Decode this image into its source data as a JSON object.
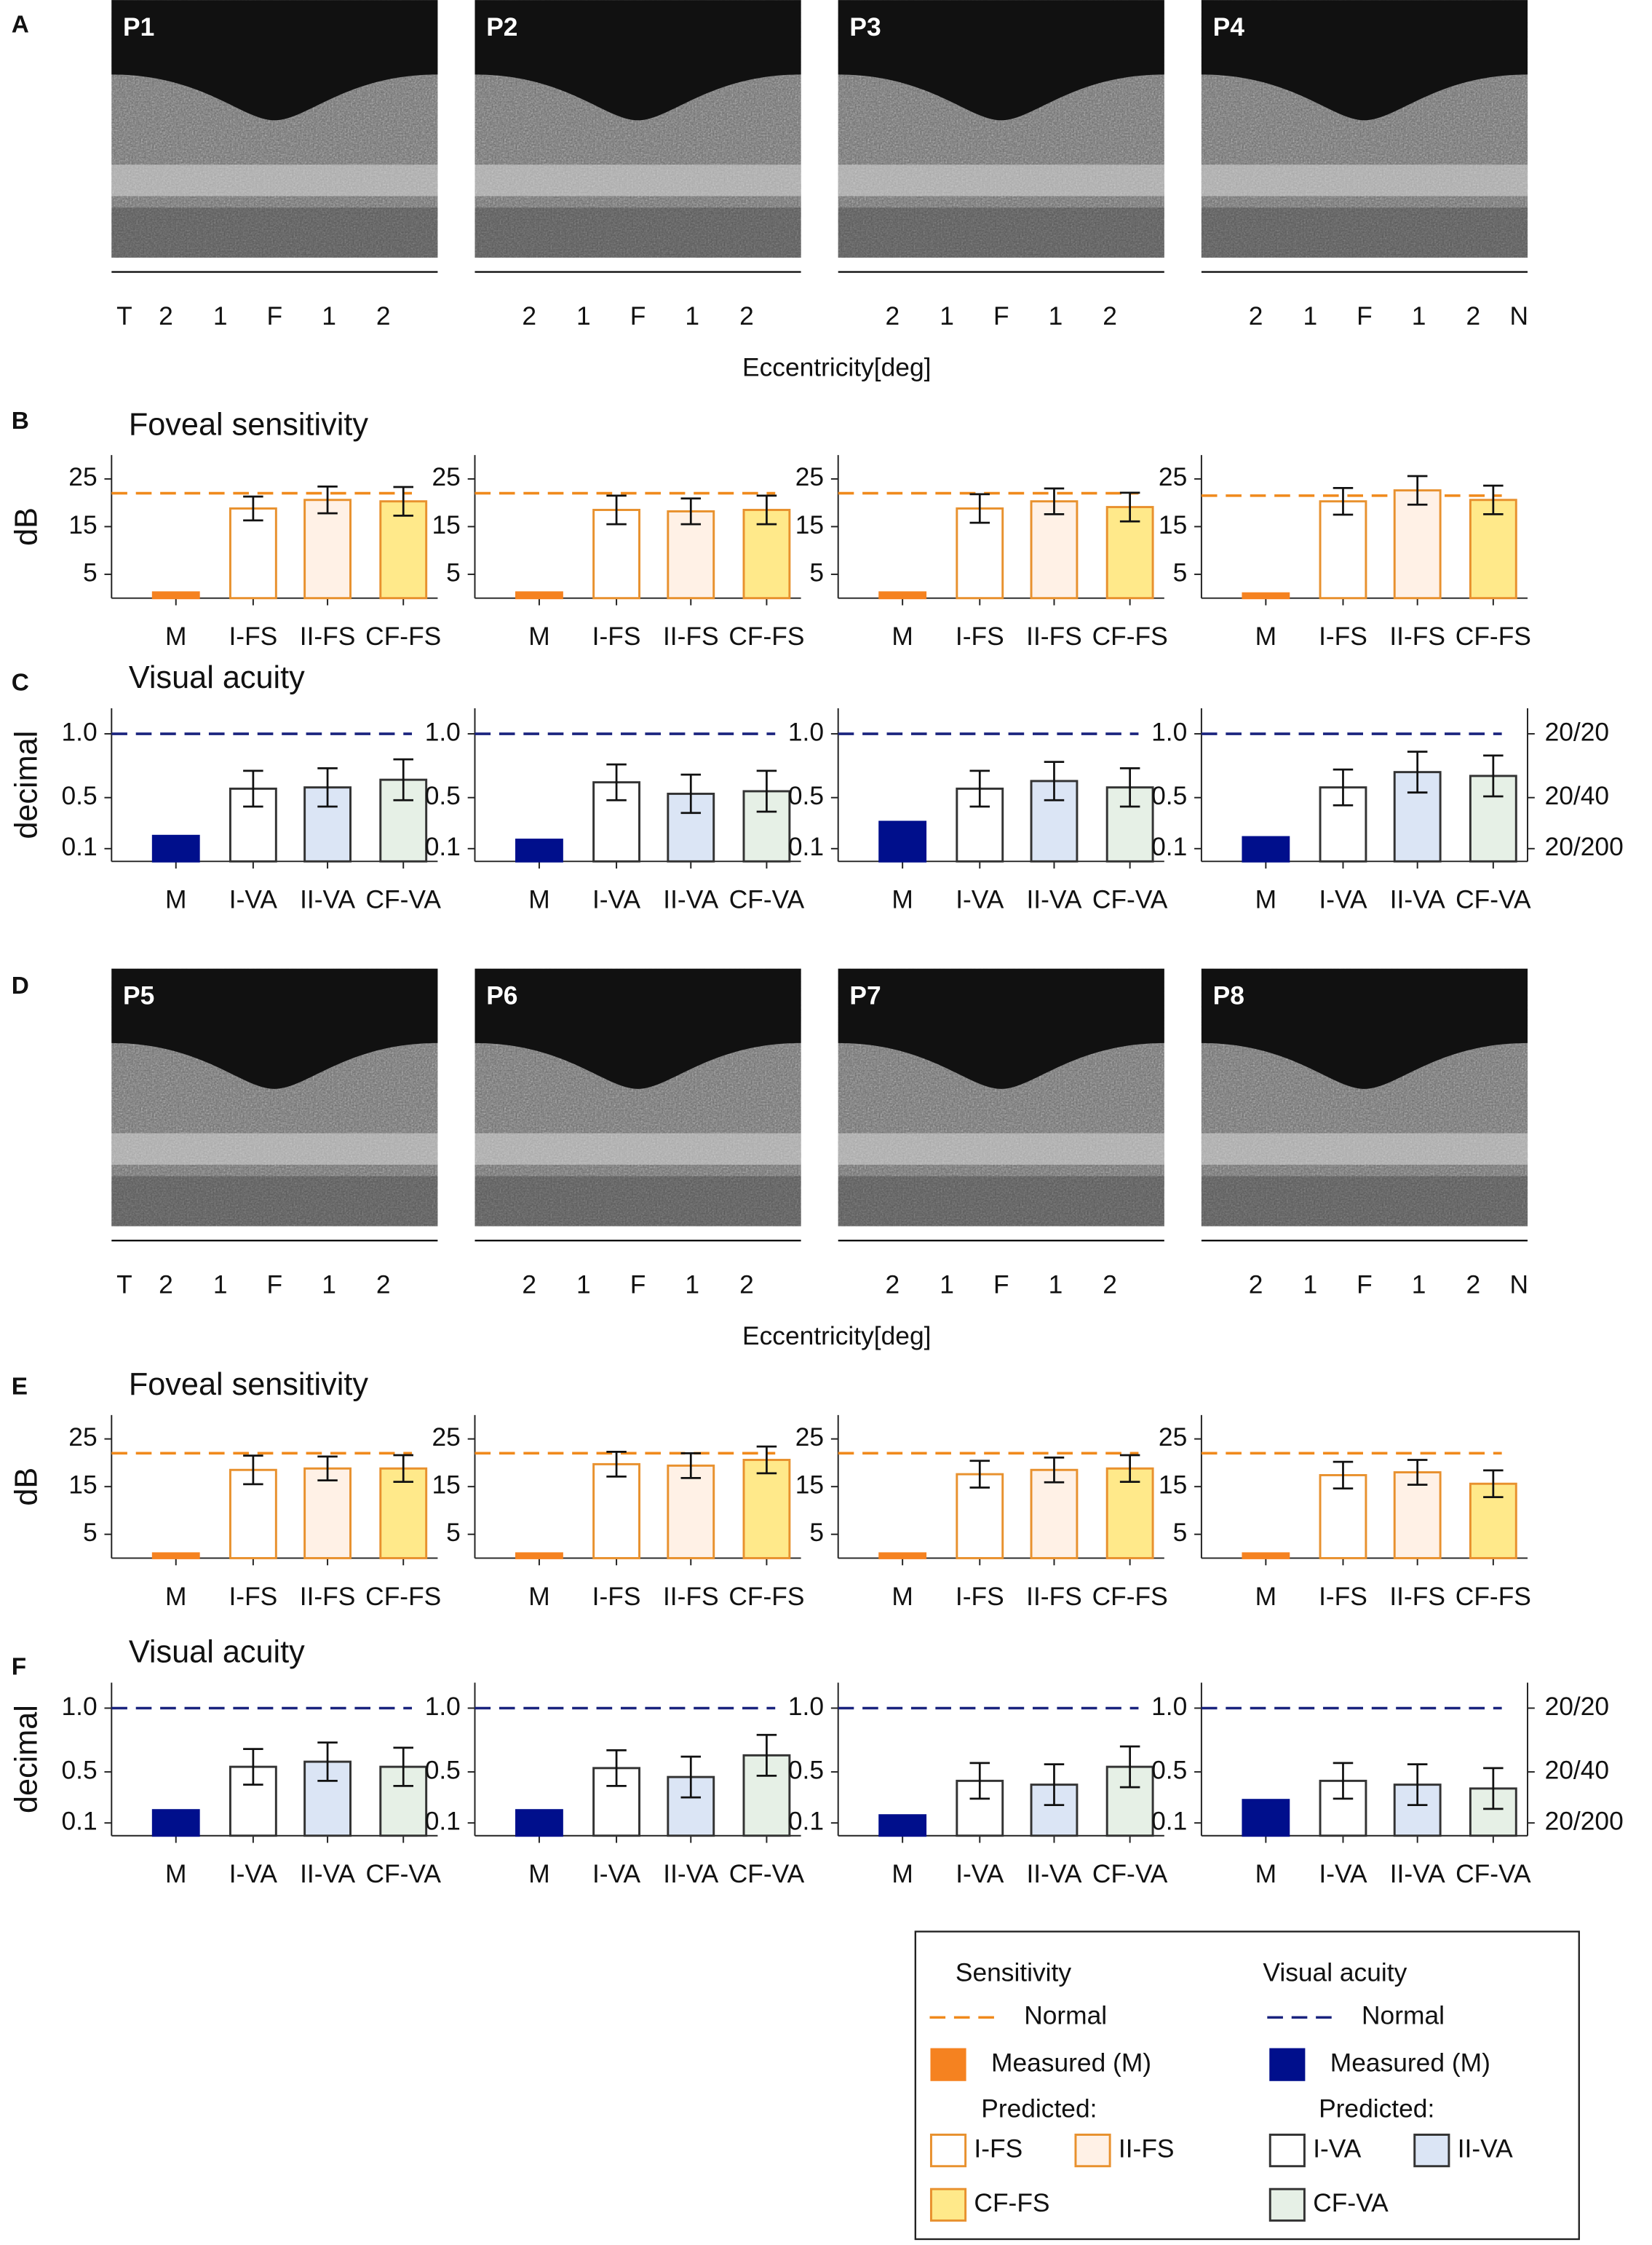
{
  "panel_letters": [
    "A",
    "B",
    "C",
    "D",
    "E",
    "F"
  ],
  "oct_rows": [
    {
      "images": [
        {
          "label": "P1",
          "ticks": [
            "T",
            "2",
            "1",
            "F",
            "1",
            "2"
          ]
        },
        {
          "label": "P2",
          "ticks": [
            "2",
            "1",
            "F",
            "1",
            "2"
          ]
        },
        {
          "label": "P3",
          "ticks": [
            "2",
            "1",
            "F",
            "1",
            "2"
          ]
        },
        {
          "label": "P4",
          "ticks": [
            "2",
            "1",
            "F",
            "1",
            "2",
            "N"
          ]
        }
      ],
      "axis_label": "Eccentricity[deg]"
    },
    {
      "images": [
        {
          "label": "P5",
          "ticks": [
            "T",
            "2",
            "1",
            "F",
            "1",
            "2"
          ]
        },
        {
          "label": "P6",
          "ticks": [
            "2",
            "1",
            "F",
            "1",
            "2"
          ]
        },
        {
          "label": "P7",
          "ticks": [
            "2",
            "1",
            "F",
            "1",
            "2"
          ]
        },
        {
          "label": "P8",
          "ticks": [
            "2",
            "1",
            "F",
            "1",
            "2",
            "N"
          ]
        }
      ],
      "axis_label": "Eccentricity[deg]"
    }
  ],
  "chart_data": [
    {
      "type": "bar",
      "title": "Foveal sensitivity",
      "ylabel": "dB",
      "categories": [
        "M",
        "I-FS",
        "II-FS",
        "CF-FS"
      ],
      "values": [
        1.2,
        18.8,
        20.6,
        20.3
      ],
      "errors": [
        null,
        2.5,
        2.8,
        3
      ],
      "colors": [
        "#f58220",
        "#ffffff",
        "#fff1e6",
        "#ffe98a"
      ],
      "edgecolors": [
        "#f58220",
        "#e8912e",
        "#e8912e",
        "#e8912e"
      ],
      "ylim": [
        0,
        30
      ],
      "yticks": [
        5,
        15,
        25
      ],
      "normal": 22,
      "normal_color": "#f08a1c"
    },
    {
      "type": "bar",
      "categories": [
        "M",
        "I-FS",
        "II-FS",
        "CF-FS"
      ],
      "values": [
        1.2,
        18.5,
        18.2,
        18.5
      ],
      "errors": [
        null,
        3,
        2.7,
        3
      ],
      "colors": [
        "#f58220",
        "#ffffff",
        "#fff1e6",
        "#ffe98a"
      ],
      "edgecolors": [
        "#f58220",
        "#e8912e",
        "#e8912e",
        "#e8912e"
      ],
      "ylim": [
        0,
        30
      ],
      "yticks": [
        5,
        15,
        25
      ],
      "normal": 22,
      "normal_color": "#f08a1c"
    },
    {
      "type": "bar",
      "categories": [
        "M",
        "I-FS",
        "II-FS",
        "CF-FS"
      ],
      "values": [
        1.2,
        18.8,
        20.3,
        19.1
      ],
      "errors": [
        null,
        3,
        2.7,
        3
      ],
      "colors": [
        "#f58220",
        "#ffffff",
        "#fff1e6",
        "#ffe98a"
      ],
      "edgecolors": [
        "#f58220",
        "#e8912e",
        "#e8912e",
        "#e8912e"
      ],
      "ylim": [
        0,
        30
      ],
      "yticks": [
        5,
        15,
        25
      ],
      "normal": 22,
      "normal_color": "#f08a1c"
    },
    {
      "type": "bar",
      "categories": [
        "M",
        "I-FS",
        "II-FS",
        "CF-FS"
      ],
      "values": [
        1,
        20.3,
        22.6,
        20.6
      ],
      "errors": [
        null,
        2.8,
        3,
        3
      ],
      "colors": [
        "#f58220",
        "#ffffff",
        "#fff1e6",
        "#ffe98a"
      ],
      "edgecolors": [
        "#f58220",
        "#e8912e",
        "#e8912e",
        "#e8912e"
      ],
      "ylim": [
        0,
        30
      ],
      "yticks": [
        5,
        15,
        25
      ],
      "normal": 21.5,
      "normal_color": "#f08a1c"
    },
    {
      "type": "bar",
      "title": "Visual acuity",
      "ylabel": "decimal",
      "categories": [
        "M",
        "I-VA",
        "II-VA",
        "CF-VA"
      ],
      "values": [
        0.2,
        0.57,
        0.58,
        0.64
      ],
      "errors": [
        null,
        0.14,
        0.15,
        0.16
      ],
      "colors": [
        "#000f8c",
        "#ffffff",
        "#dbe5f5",
        "#e6f0e6"
      ],
      "edgecolors": [
        "#000f8c",
        "#333333",
        "#333333",
        "#333333"
      ],
      "ylim": [
        0,
        1.2
      ],
      "yticks": [
        0.1,
        0.5,
        {
          "value": 1.0,
          "label": "1.0"
        }
      ],
      "normal": 1.0,
      "normal_color": "#1a237e"
    },
    {
      "type": "bar",
      "categories": [
        "M",
        "I-VA",
        "II-VA",
        "CF-VA"
      ],
      "values": [
        0.17,
        0.62,
        0.53,
        0.55
      ],
      "errors": [
        null,
        0.14,
        0.15,
        0.16
      ],
      "colors": [
        "#000f8c",
        "#ffffff",
        "#dbe5f5",
        "#e6f0e6"
      ],
      "edgecolors": [
        "#000f8c",
        "#333333",
        "#333333",
        "#333333"
      ],
      "ylim": [
        0,
        1.2
      ],
      "yticks": [
        0.1,
        0.5,
        {
          "value": 1.0,
          "label": "1.0"
        }
      ],
      "normal": 1.0,
      "normal_color": "#1a237e"
    },
    {
      "type": "bar",
      "categories": [
        "M",
        "I-VA",
        "II-VA",
        "CF-VA"
      ],
      "values": [
        0.31,
        0.57,
        0.63,
        0.58
      ],
      "errors": [
        null,
        0.14,
        0.15,
        0.15
      ],
      "colors": [
        "#000f8c",
        "#ffffff",
        "#dbe5f5",
        "#e6f0e6"
      ],
      "edgecolors": [
        "#000f8c",
        "#333333",
        "#333333",
        "#333333"
      ],
      "ylim": [
        0,
        1.2
      ],
      "yticks": [
        0.1,
        0.5,
        {
          "value": 1.0,
          "label": "1.0"
        }
      ],
      "normal": 1.0,
      "normal_color": "#1a237e"
    },
    {
      "type": "bar",
      "categories": [
        "M",
        "I-VA",
        "II-VA",
        "CF-VA"
      ],
      "values": [
        0.19,
        0.58,
        0.7,
        0.67
      ],
      "errors": [
        null,
        0.14,
        0.16,
        0.16
      ],
      "colors": [
        "#000f8c",
        "#ffffff",
        "#dbe5f5",
        "#e6f0e6"
      ],
      "edgecolors": [
        "#000f8c",
        "#333333",
        "#333333",
        "#333333"
      ],
      "ylim": [
        0,
        1.2
      ],
      "yticks": [
        0.1,
        0.5,
        {
          "value": 1.0,
          "label": "1.0"
        }
      ],
      "y2lim": [
        0,
        1.2
      ],
      "y2ticks": [
        {
          "value": 1.0,
          "label": "20/20"
        },
        {
          "value": 0.5,
          "label": "20/40"
        },
        {
          "value": 0.1,
          "label": "20/200"
        }
      ],
      "normal": 1.0,
      "normal_color": "#1a237e"
    },
    {
      "type": "bar",
      "title": "Foveal sensitivity",
      "ylabel": "dB",
      "categories": [
        "M",
        "I-FS",
        "II-FS",
        "CF-FS"
      ],
      "values": [
        1,
        18.5,
        18.8,
        18.8
      ],
      "errors": [
        null,
        3,
        2.5,
        2.8
      ],
      "colors": [
        "#f58220",
        "#ffffff",
        "#fff1e6",
        "#ffe98a"
      ],
      "edgecolors": [
        "#f58220",
        "#e8912e",
        "#e8912e",
        "#e8912e"
      ],
      "ylim": [
        0,
        30
      ],
      "yticks": [
        5,
        15,
        25
      ],
      "normal": 22,
      "normal_color": "#f08a1c"
    },
    {
      "type": "bar",
      "categories": [
        "M",
        "I-FS",
        "II-FS",
        "CF-FS"
      ],
      "values": [
        1,
        19.7,
        19.4,
        20.6
      ],
      "errors": [
        null,
        2.6,
        2.6,
        2.8
      ],
      "colors": [
        "#f58220",
        "#ffffff",
        "#fff1e6",
        "#ffe98a"
      ],
      "edgecolors": [
        "#f58220",
        "#e8912e",
        "#e8912e",
        "#e8912e"
      ],
      "ylim": [
        0,
        30
      ],
      "yticks": [
        5,
        15,
        25
      ],
      "normal": 22,
      "normal_color": "#f08a1c"
    },
    {
      "type": "bar",
      "categories": [
        "M",
        "I-FS",
        "II-FS",
        "CF-FS"
      ],
      "values": [
        1,
        17.6,
        18.5,
        18.8
      ],
      "errors": [
        null,
        2.8,
        2.6,
        2.8
      ],
      "colors": [
        "#f58220",
        "#ffffff",
        "#fff1e6",
        "#ffe98a"
      ],
      "edgecolors": [
        "#f58220",
        "#e8912e",
        "#e8912e",
        "#e8912e"
      ],
      "ylim": [
        0,
        30
      ],
      "yticks": [
        5,
        15,
        25
      ],
      "normal": 22,
      "normal_color": "#f08a1c"
    },
    {
      "type": "bar",
      "categories": [
        "M",
        "I-FS",
        "II-FS",
        "CF-FS"
      ],
      "values": [
        1,
        17.4,
        18,
        15.6
      ],
      "errors": [
        null,
        2.8,
        2.6,
        2.8
      ],
      "colors": [
        "#f58220",
        "#ffffff",
        "#fff1e6",
        "#ffe98a"
      ],
      "edgecolors": [
        "#f58220",
        "#e8912e",
        "#e8912e",
        "#e8912e"
      ],
      "ylim": [
        0,
        30
      ],
      "yticks": [
        5,
        15,
        25
      ],
      "normal": 22,
      "normal_color": "#f08a1c"
    },
    {
      "type": "bar",
      "title": "Visual acuity",
      "ylabel": "decimal",
      "categories": [
        "M",
        "I-VA",
        "II-VA",
        "CF-VA"
      ],
      "values": [
        0.2,
        0.54,
        0.58,
        0.54
      ],
      "errors": [
        null,
        0.14,
        0.15,
        0.15
      ],
      "colors": [
        "#000f8c",
        "#ffffff",
        "#dbe5f5",
        "#e6f0e6"
      ],
      "edgecolors": [
        "#000f8c",
        "#333333",
        "#333333",
        "#333333"
      ],
      "ylim": [
        0,
        1.2
      ],
      "yticks": [
        0.1,
        0.5,
        {
          "value": 1.0,
          "label": "1.0"
        }
      ],
      "normal": 1.0,
      "normal_color": "#1a237e"
    },
    {
      "type": "bar",
      "categories": [
        "M",
        "I-VA",
        "II-VA",
        "CF-VA"
      ],
      "values": [
        0.2,
        0.53,
        0.46,
        0.63
      ],
      "errors": [
        null,
        0.14,
        0.16,
        0.16
      ],
      "colors": [
        "#000f8c",
        "#ffffff",
        "#dbe5f5",
        "#e6f0e6"
      ],
      "edgecolors": [
        "#000f8c",
        "#333333",
        "#333333",
        "#333333"
      ],
      "ylim": [
        0,
        1.2
      ],
      "yticks": [
        0.1,
        0.5,
        {
          "value": 1.0,
          "label": "1.0"
        }
      ],
      "normal": 1.0,
      "normal_color": "#1a237e"
    },
    {
      "type": "bar",
      "categories": [
        "M",
        "I-VA",
        "II-VA",
        "CF-VA"
      ],
      "values": [
        0.16,
        0.43,
        0.4,
        0.54
      ],
      "errors": [
        null,
        0.14,
        0.16,
        0.16
      ],
      "colors": [
        "#000f8c",
        "#ffffff",
        "#dbe5f5",
        "#e6f0e6"
      ],
      "edgecolors": [
        "#000f8c",
        "#333333",
        "#333333",
        "#333333"
      ],
      "ylim": [
        0,
        1.2
      ],
      "yticks": [
        0.1,
        0.5,
        {
          "value": 1.0,
          "label": "1.0"
        }
      ],
      "normal": 1.0,
      "normal_color": "#1a237e"
    },
    {
      "type": "bar",
      "categories": [
        "M",
        "I-VA",
        "II-VA",
        "CF-VA"
      ],
      "values": [
        0.28,
        0.43,
        0.4,
        0.37
      ],
      "errors": [
        null,
        0.14,
        0.16,
        0.16
      ],
      "colors": [
        "#000f8c",
        "#ffffff",
        "#dbe5f5",
        "#e6f0e6"
      ],
      "edgecolors": [
        "#000f8c",
        "#333333",
        "#333333",
        "#333333"
      ],
      "ylim": [
        0,
        1.2
      ],
      "yticks": [
        0.1,
        0.5,
        {
          "value": 1.0,
          "label": "1.0"
        }
      ],
      "y2lim": [
        0,
        1.2
      ],
      "y2ticks": [
        {
          "value": 1.0,
          "label": "20/20"
        },
        {
          "value": 0.5,
          "label": "20/40"
        },
        {
          "value": 0.1,
          "label": "20/200"
        }
      ],
      "normal": 1.0,
      "normal_color": "#1a237e"
    }
  ],
  "legend": {
    "sensitivity": {
      "title": "Sensitivity",
      "normal": "Normal",
      "measured": "Measured (M)",
      "predicted": "Predicted:",
      "items": [
        "I-FS",
        "II-FS",
        "CF-FS"
      ]
    },
    "visual_acuity": {
      "title": "Visual acuity",
      "normal": "Normal",
      "measured": "Measured (M)",
      "predicted": "Predicted:",
      "items": [
        "I-VA",
        "II-VA",
        "CF-VA"
      ]
    }
  }
}
